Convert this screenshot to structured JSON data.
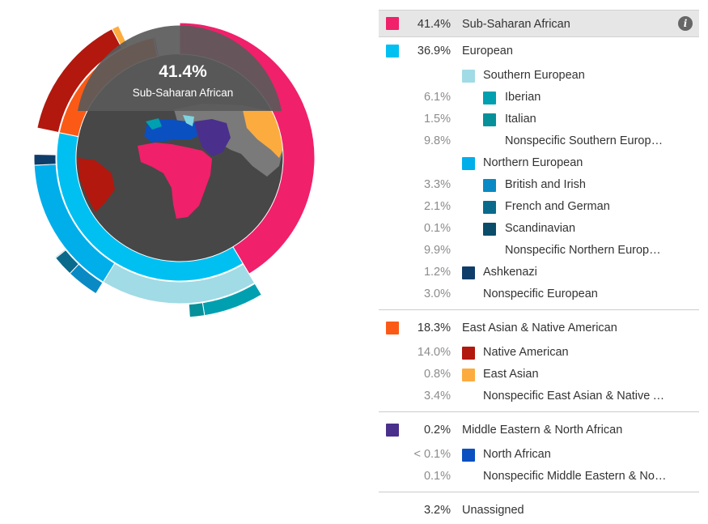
{
  "center": {
    "percent": "41.4%",
    "label": "Sub-Saharan African"
  },
  "colors": {
    "sub_saharan": "#f0206a",
    "european": "#00c0f2",
    "southern_european": "#a1dbe5",
    "iberian": "#00a0b0",
    "italian": "#06909a",
    "northern_european": "#00aeea",
    "british_irish": "#0a8ac4",
    "french_german": "#0a6a8c",
    "scandinavian": "#0a4c6a",
    "ashkenazi": "#0f3d6a",
    "east_asian_native_american": "#fb5a16",
    "native_american": "#b2180e",
    "east_asian": "#fcac3e",
    "middle_eastern": "#4a2f8d",
    "north_african": "#0a50c0",
    "map_background": "#474747"
  },
  "legend": {
    "sub_saharan": {
      "pct": "41.4%",
      "label": "Sub-Saharan African",
      "info_icon": "i"
    },
    "european": {
      "pct": "36.9%",
      "label": "European"
    },
    "southern_european": {
      "pct": "",
      "label": "Southern European"
    },
    "iberian": {
      "pct": "6.1%",
      "label": "Iberian"
    },
    "italian": {
      "pct": "1.5%",
      "label": "Italian"
    },
    "nonspecific_southern": {
      "pct": "9.8%",
      "label": "Nonspecific Southern European"
    },
    "northern_european": {
      "pct": "",
      "label": "Northern European"
    },
    "british_irish": {
      "pct": "3.3%",
      "label": "British and Irish"
    },
    "french_german": {
      "pct": "2.1%",
      "label": "French and German"
    },
    "scandinavian": {
      "pct": "0.1%",
      "label": "Scandinavian"
    },
    "nonspecific_northern": {
      "pct": "9.9%",
      "label": "Nonspecific Northern European"
    },
    "ashkenazi": {
      "pct": "1.2%",
      "label": "Ashkenazi"
    },
    "nonspecific_european": {
      "pct": "3.0%",
      "label": "Nonspecific European"
    },
    "east_asian_native": {
      "pct": "18.3%",
      "label": "East Asian & Native American"
    },
    "native_american": {
      "pct": "14.0%",
      "label": "Native American"
    },
    "east_asian": {
      "pct": "0.8%",
      "label": "East Asian"
    },
    "nonspecific_east_asian_native": {
      "pct": "3.4%",
      "label": "Nonspecific East Asian & Native American"
    },
    "middle_eastern": {
      "pct": "0.2%",
      "label": "Middle Eastern & North African"
    },
    "north_african": {
      "pct": "< 0.1%",
      "label": "North African"
    },
    "nonspecific_middle_eastern": {
      "pct": "0.1%",
      "label": "Nonspecific Middle Eastern & North African"
    },
    "unassigned": {
      "pct": "3.2%",
      "label": "Unassigned"
    }
  },
  "chart_data": {
    "type": "pie",
    "rings": [
      {
        "name": "",
        "slices": [
          {
            "name": "Sub-Saharan African",
            "value": 41.4
          },
          {
            "name": "European",
            "value": 36.9
          },
          {
            "name": "East Asian & Native American",
            "value": 18.3
          },
          {
            "name": "Middle Eastern & North African",
            "value": 0.2
          },
          {
            "name": "Unassigned",
            "value": 3.2
          }
        ]
      },
      {
        "name": "",
        "slices": [
          {
            "name": "Southern European",
            "value": 17.4
          },
          {
            "name": "Northern European",
            "value": 15.4
          },
          {
            "name": "Ashkenazi",
            "value": 1.2
          },
          {
            "name": "Native American",
            "value": 14.0
          },
          {
            "name": "East Asian",
            "value": 0.8
          },
          {
            "name": "North African",
            "value": 0.05
          }
        ]
      },
      {
        "name": "",
        "slices": [
          {
            "name": "Iberian",
            "value": 6.1
          },
          {
            "name": "Italian",
            "value": 1.5
          },
          {
            "name": "British and Irish",
            "value": 3.3
          },
          {
            "name": "French and German",
            "value": 2.1
          },
          {
            "name": "Scandinavian",
            "value": 0.1
          }
        ]
      }
    ]
  }
}
